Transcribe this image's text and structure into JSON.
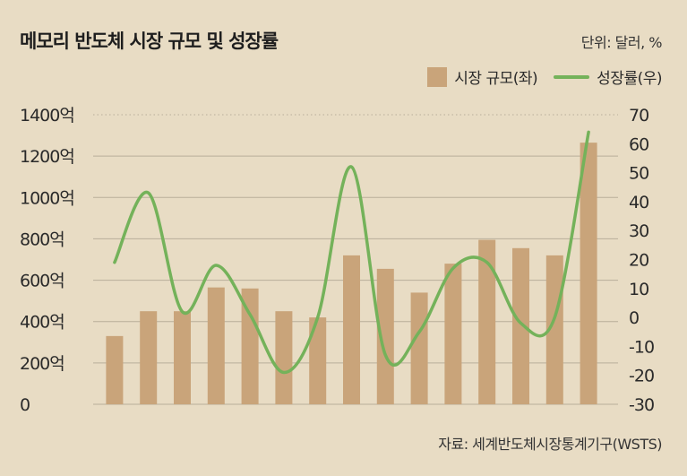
{
  "title": "메모리 반도체 시장 규모 및 성장률",
  "unit": "단위: 달러, %",
  "legend": {
    "bar_label": "시장 규모(좌)",
    "line_label": "성장률(우)"
  },
  "source": "자료: 세계반도체시장통계기구(WSTS)",
  "colors": {
    "background": "#e8dcc4",
    "bar": "#c9a47a",
    "line": "#74b25a",
    "grid": "#b9ae9a",
    "zero_line": "#8a8378"
  },
  "chart_data": {
    "type": "bar",
    "categories": [
      "",
      "",
      "",
      "",
      "",
      "",
      "",
      "",
      "",
      "",
      "",
      "",
      "",
      "",
      "",
      ""
    ],
    "series": [
      {
        "name": "시장 규모(좌)",
        "type": "bar",
        "axis": "left",
        "values": [
          330,
          450,
          450,
          565,
          560,
          450,
          420,
          720,
          655,
          540,
          680,
          795,
          755,
          720,
          1265,
          null
        ]
      },
      {
        "name": "성장률(우)",
        "type": "line",
        "axis": "right",
        "values": [
          19,
          43,
          2,
          18,
          1,
          -19,
          0,
          52,
          -13,
          -5,
          17,
          19,
          -2,
          0,
          64,
          null
        ]
      }
    ],
    "left_axis": {
      "ylim": [
        0,
        1400
      ],
      "ticks": [
        0,
        200,
        400,
        600,
        800,
        1000,
        1200,
        1400
      ],
      "tick_labels": [
        "0",
        "200억",
        "400억",
        "600억",
        "800억",
        "1000억",
        "1200억",
        "1400억"
      ]
    },
    "right_axis": {
      "ylim": [
        -30,
        70
      ],
      "ticks": [
        -30,
        -20,
        -10,
        0,
        10,
        20,
        30,
        40,
        50,
        60,
        70
      ],
      "tick_labels": [
        "-30",
        "-20",
        "-10",
        "0",
        "10",
        "20",
        "30",
        "40",
        "50",
        "60",
        "70"
      ]
    },
    "grid": true,
    "legend_position": "top-right"
  }
}
